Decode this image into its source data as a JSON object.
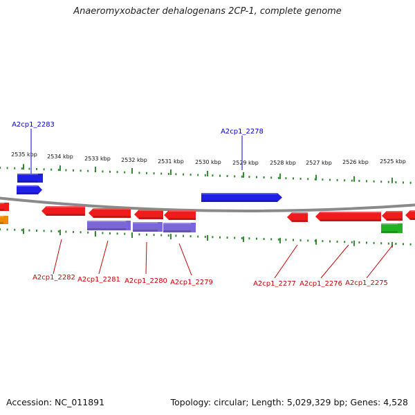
{
  "title": "Anaeromyxobacter dehalogenans 2CP-1, complete genome",
  "accession": "Accession: NC_011891",
  "stats": "Topology: circular; Length: 5,029,329 bp; Genes: 4,528",
  "colors": {
    "backbone": "#8a8a8a",
    "ticks": "#2e8b2e",
    "forward_gene": "#1f1fe6",
    "reverse_gene": "#ee1c1c",
    "purple_gene": "#7a66d6",
    "green_gene": "#22b322",
    "orange_gene": "#f08a00",
    "forward_label": "#0000cc",
    "reverse_label": "#cc0000"
  },
  "tick_labels": [
    "2535 kbp",
    "2534 kbp",
    "2533 kbp",
    "2532 kbp",
    "2531 kbp",
    "2530 kbp",
    "2529 kbp",
    "2528 kbp",
    "2527 kbp",
    "2526 kbp",
    "2525 kbp"
  ],
  "genes": [
    {
      "id": "A2cp1_2283",
      "strand": "+"
    },
    {
      "id": "A2cp1_2278",
      "strand": "+"
    },
    {
      "id": "A2cp1_2282",
      "strand": "-"
    },
    {
      "id": "A2cp1_2281",
      "strand": "-"
    },
    {
      "id": "A2cp1_2280",
      "strand": "-"
    },
    {
      "id": "A2cp1_2279",
      "strand": "-"
    },
    {
      "id": "A2cp1_2277",
      "strand": "-"
    },
    {
      "id": "A2cp1_2276",
      "strand": "-"
    },
    {
      "id": "A2cp1_2275",
      "strand": "-"
    }
  ]
}
